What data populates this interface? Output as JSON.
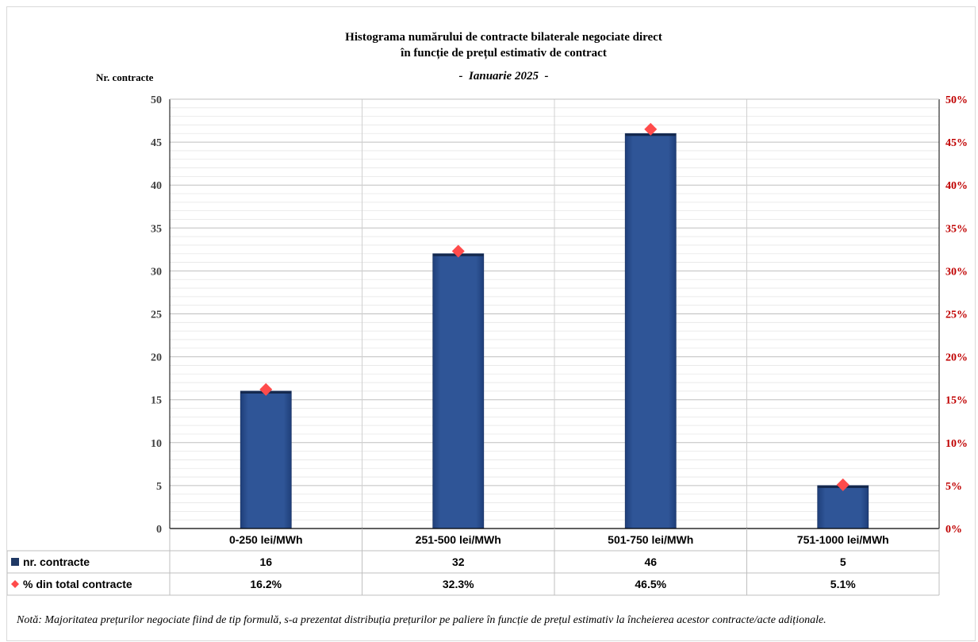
{
  "chart_data": {
    "type": "bar",
    "title_lines": [
      "Histograma numărului de contracte bilaterale negociate direct",
      "în funcție de prețul estimativ de contract"
    ],
    "subtitle": "-  Ianuarie 2025  -",
    "ylabel": "Nr. contracte",
    "ylim": [
      0,
      50
    ],
    "yticks": [
      "0",
      "5",
      "10",
      "15",
      "20",
      "25",
      "30",
      "35",
      "40",
      "45",
      "50"
    ],
    "y2lim": [
      0,
      50
    ],
    "y2ticks": [
      "0%",
      "5%",
      "10%",
      "15%",
      "20%",
      "25%",
      "30%",
      "35%",
      "40%",
      "45%",
      "50%"
    ],
    "categories": [
      "0-250 lei/MWh",
      "251-500 lei/MWh",
      "501-750 lei/MWh",
      "751-1000 lei/MWh"
    ],
    "series": [
      {
        "name": "nr. contracte",
        "type": "bar",
        "values": [
          16,
          32,
          46,
          5
        ],
        "labels": [
          "16",
          "32",
          "46",
          "5"
        ],
        "color": "#2f5597"
      },
      {
        "name": "% din total contracte",
        "type": "scatter",
        "axis": "secondary",
        "values": [
          16.2,
          32.3,
          46.5,
          5.1
        ],
        "labels": [
          "16.2%",
          "32.3%",
          "46.5%",
          "5.1%"
        ],
        "color": "#ff4b4b"
      }
    ],
    "grid": true,
    "legend": "data-table"
  },
  "note": "Notă: Majoritatea prețurilor negociate fiind de tip formulă, s-a prezentat distribuția prețurilor pe paliere în funcție de prețul estimativ la încheierea acestor contracte/acte adiționale."
}
